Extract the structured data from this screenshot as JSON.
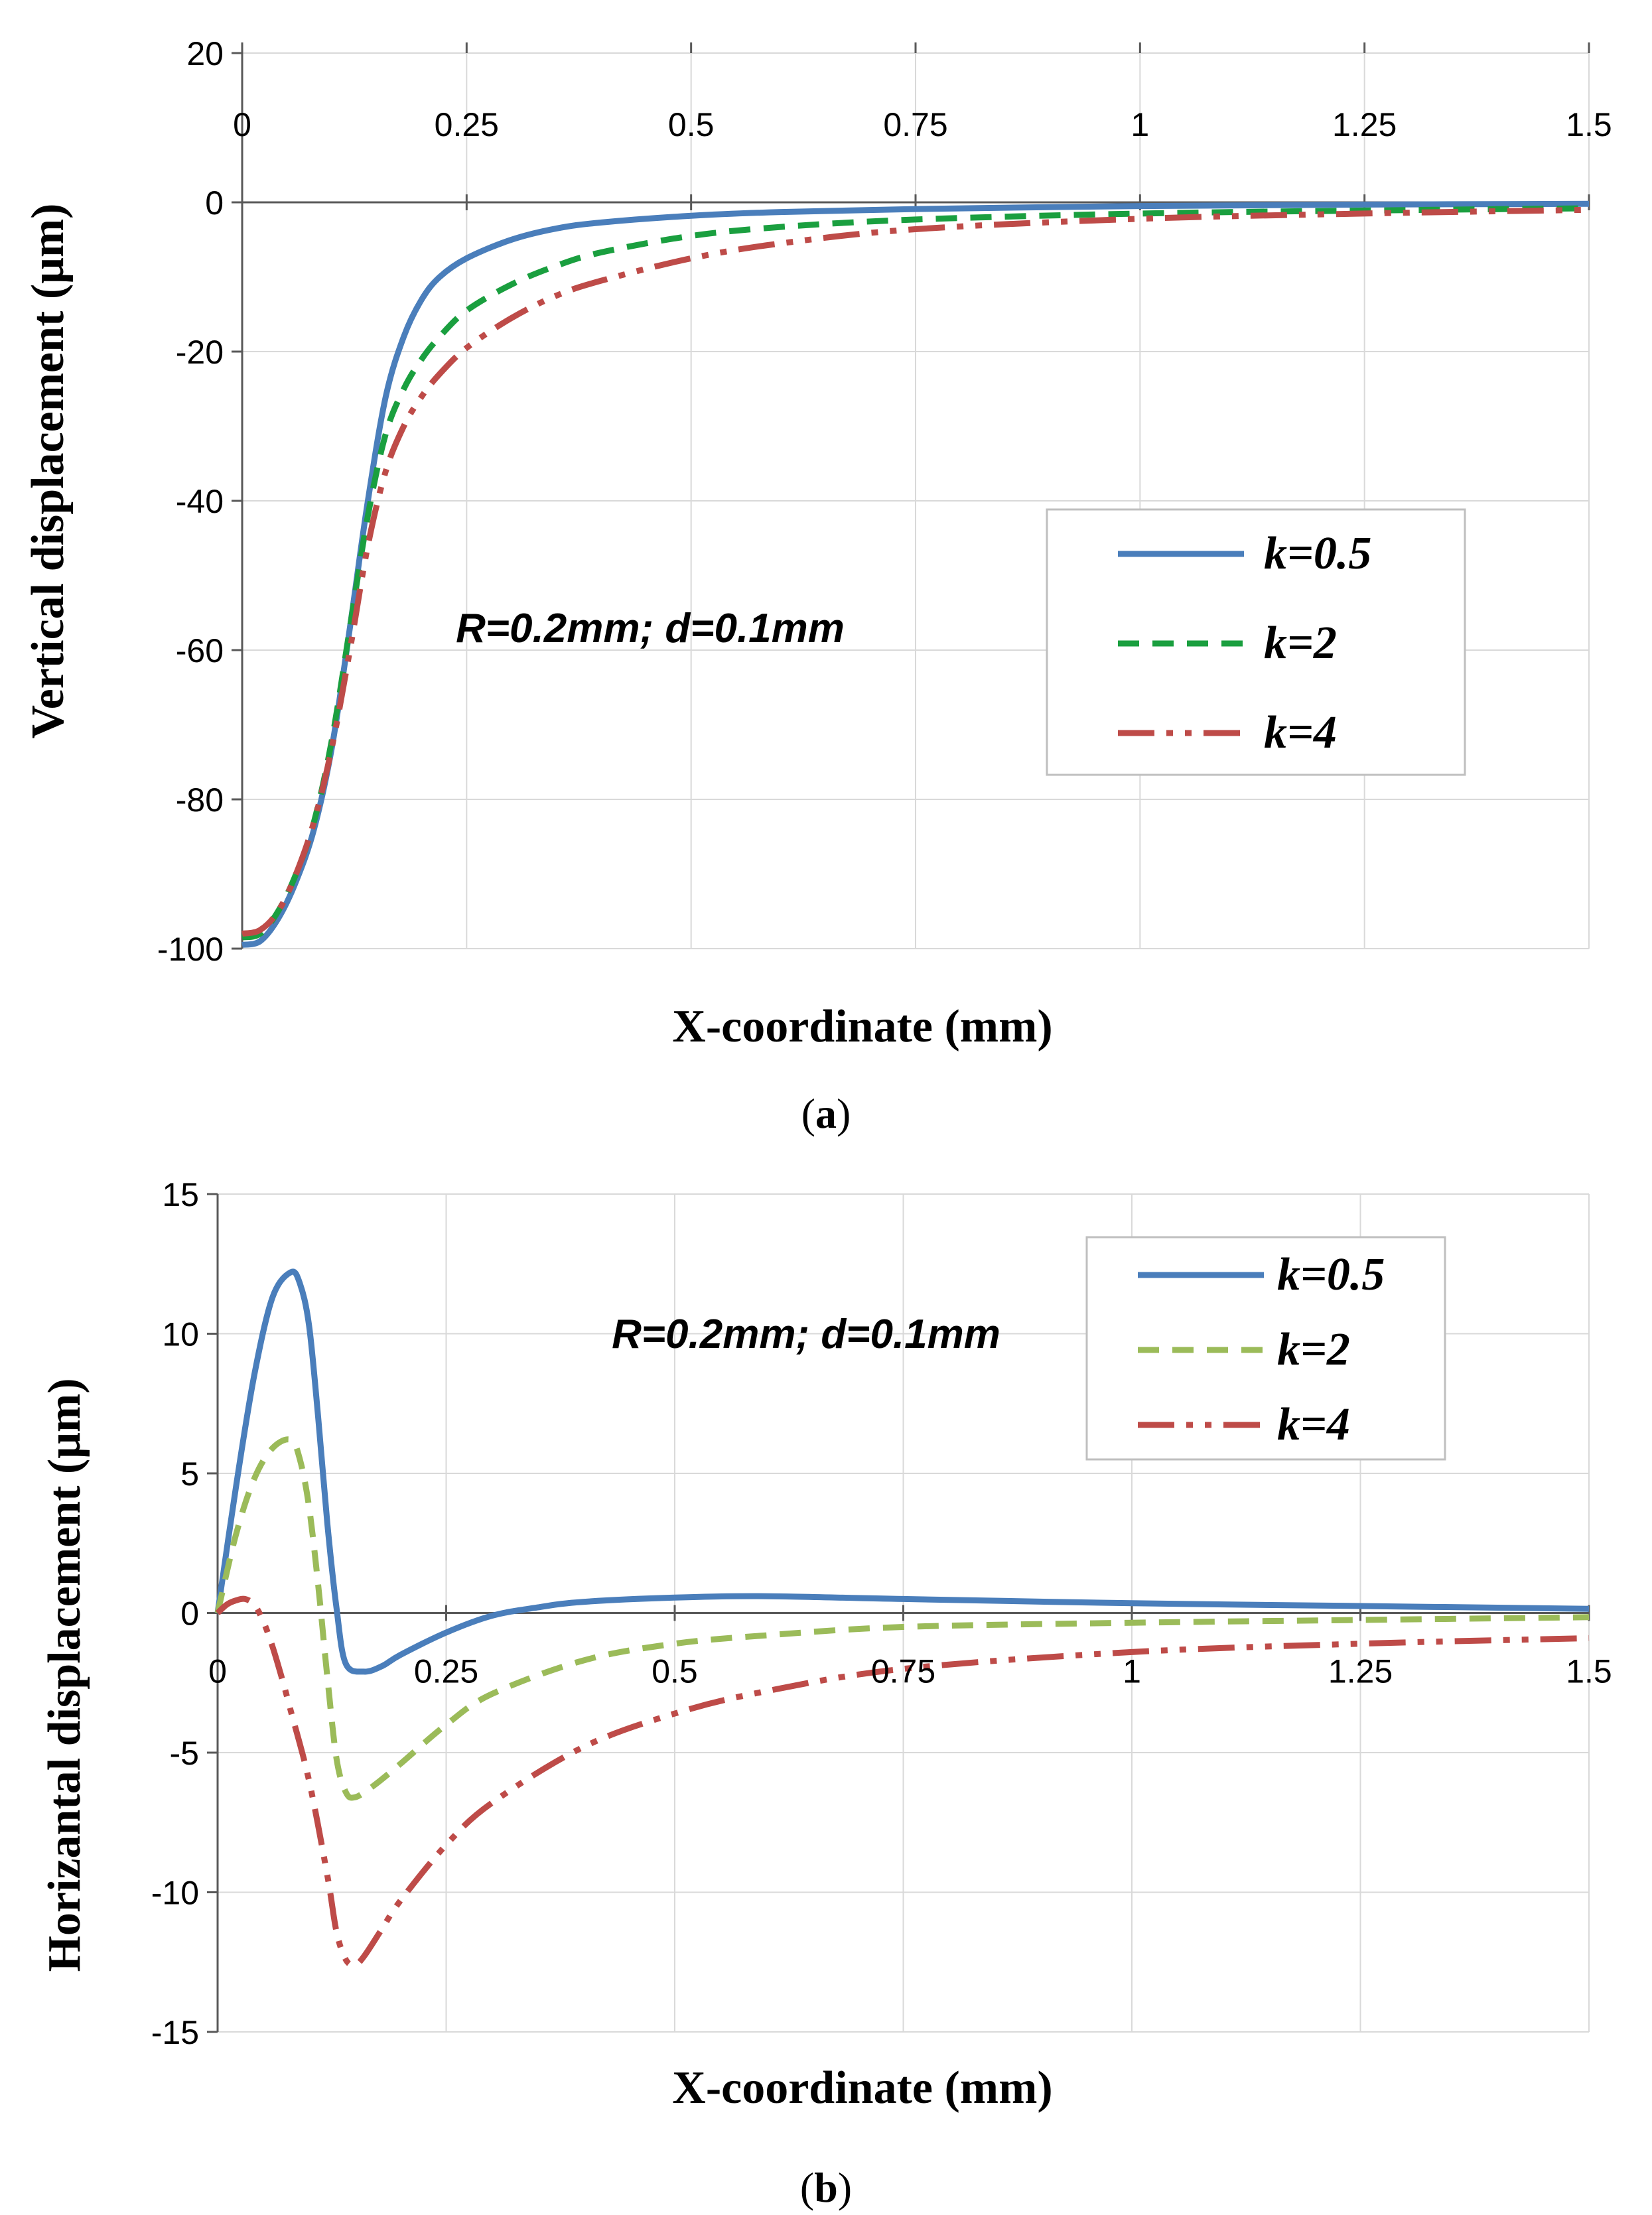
{
  "colors": {
    "k05": "#4a7ebb",
    "k2_a": "#1a9f3f",
    "k2_b": "#9bbb59",
    "k4": "#be4b48"
  },
  "chart_data": [
    {
      "id": "a",
      "type": "line",
      "panel_label_text": "a",
      "xlabel": "X-coordinate (mm)",
      "ylabel": "Vertical displacement (μm)",
      "annotation": "R=0.2mm; d=0.1mm",
      "xlim": [
        0,
        1.5
      ],
      "ylim": [
        -100,
        20
      ],
      "x_ticks": [
        0,
        0.25,
        0.5,
        0.75,
        1,
        1.25,
        1.5
      ],
      "x_tick_labels": [
        "0",
        "0.25",
        "0.5",
        "0.75",
        "1",
        "1.25",
        "1.5"
      ],
      "y_ticks": [
        20,
        0,
        -20,
        -40,
        -60,
        -80,
        -100
      ],
      "y_tick_labels": [
        "20",
        "0",
        "-20",
        "-40",
        "-60",
        "-80",
        "-100"
      ],
      "x_tick_labels_position": "top",
      "legend_position": "center-right",
      "series": [
        {
          "name": "k=0.5",
          "color_key": "k05",
          "dash": "solid",
          "x": [
            0,
            0.02,
            0.04,
            0.06,
            0.08,
            0.1,
            0.12,
            0.14,
            0.16,
            0.18,
            0.2,
            0.22,
            0.25,
            0.3,
            0.35,
            0.4,
            0.5,
            0.6,
            0.75,
            1.0,
            1.25,
            1.5
          ],
          "y": [
            -99.5,
            -99,
            -96,
            -91,
            -84,
            -73,
            -57,
            -40,
            -26,
            -18,
            -13,
            -10,
            -7.5,
            -5,
            -3.5,
            -2.7,
            -1.8,
            -1.3,
            -0.9,
            -0.5,
            -0.3,
            -0.2
          ]
        },
        {
          "name": "k=2",
          "color_key": "k2_a",
          "dash": "dashed",
          "x": [
            0,
            0.02,
            0.04,
            0.06,
            0.08,
            0.1,
            0.12,
            0.14,
            0.16,
            0.18,
            0.2,
            0.22,
            0.25,
            0.3,
            0.35,
            0.4,
            0.5,
            0.6,
            0.75,
            1.0,
            1.25,
            1.5
          ],
          "y": [
            -98.5,
            -98,
            -95,
            -90,
            -83,
            -72,
            -57,
            -42,
            -31,
            -25,
            -21,
            -18,
            -14.5,
            -11,
            -8.5,
            -6.7,
            -4.5,
            -3.3,
            -2.3,
            -1.5,
            -1.1,
            -0.8
          ]
        },
        {
          "name": "k=4",
          "color_key": "k4",
          "dash": "dashdotdot",
          "x": [
            0,
            0.02,
            0.04,
            0.06,
            0.08,
            0.1,
            0.12,
            0.14,
            0.16,
            0.18,
            0.2,
            0.22,
            0.25,
            0.3,
            0.35,
            0.4,
            0.5,
            0.6,
            0.75,
            1.0,
            1.25,
            1.5
          ],
          "y": [
            -98,
            -97.5,
            -95,
            -90,
            -83,
            -73,
            -60,
            -46,
            -36,
            -30,
            -26,
            -23,
            -19.5,
            -15.5,
            -12.5,
            -10.5,
            -7.5,
            -5.5,
            -3.6,
            -2.2,
            -1.5,
            -1.0
          ]
        }
      ]
    },
    {
      "id": "b",
      "type": "line",
      "panel_label_text": "b",
      "xlabel": "X-coordinate (mm)",
      "ylabel": "Horizantal displacement (μm)",
      "annotation": "R=0.2mm; d=0.1mm",
      "xlim": [
        0,
        1.5
      ],
      "ylim": [
        -15,
        15
      ],
      "x_ticks": [
        0,
        0.25,
        0.5,
        0.75,
        1,
        1.25,
        1.5
      ],
      "x_tick_labels": [
        "0",
        "0.25",
        "0.5",
        "0.75",
        "1",
        "1.25",
        "1.5"
      ],
      "y_ticks": [
        15,
        10,
        5,
        0,
        -5,
        -10,
        -15
      ],
      "y_tick_labels": [
        "15",
        "10",
        "5",
        "0",
        "-5",
        "-10",
        "-15"
      ],
      "x_tick_labels_position": "below zero line",
      "legend_position": "top-right",
      "series": [
        {
          "name": "k=0.5",
          "color_key": "k05",
          "dash": "solid",
          "x": [
            0,
            0.02,
            0.04,
            0.06,
            0.08,
            0.09,
            0.1,
            0.11,
            0.12,
            0.13,
            0.14,
            0.16,
            0.18,
            0.2,
            0.25,
            0.3,
            0.35,
            0.4,
            0.5,
            0.6,
            0.75,
            1.0,
            1.25,
            1.5
          ],
          "y": [
            0,
            4.5,
            8.5,
            11.3,
            12.2,
            11.8,
            10.3,
            7.0,
            3.2,
            0.2,
            -1.8,
            -2.1,
            -1.9,
            -1.5,
            -0.7,
            -0.1,
            0.2,
            0.4,
            0.55,
            0.6,
            0.5,
            0.35,
            0.25,
            0.15
          ]
        },
        {
          "name": "k=2",
          "color_key": "k2_b",
          "dash": "dashed",
          "x": [
            0,
            0.02,
            0.04,
            0.06,
            0.08,
            0.09,
            0.1,
            0.11,
            0.12,
            0.13,
            0.14,
            0.15,
            0.17,
            0.2,
            0.25,
            0.3,
            0.4,
            0.5,
            0.6,
            0.75,
            1.0,
            1.25,
            1.5
          ],
          "y": [
            0,
            2.8,
            4.8,
            5.9,
            6.2,
            5.5,
            3.8,
            1.0,
            -2.3,
            -5.2,
            -6.4,
            -6.6,
            -6.2,
            -5.4,
            -4.0,
            -2.9,
            -1.7,
            -1.1,
            -0.8,
            -0.5,
            -0.35,
            -0.25,
            -0.15
          ]
        },
        {
          "name": "k=4",
          "color_key": "k4",
          "dash": "dashdotdot",
          "x": [
            0,
            0.01,
            0.02,
            0.03,
            0.04,
            0.05,
            0.06,
            0.07,
            0.08,
            0.1,
            0.12,
            0.13,
            0.14,
            0.15,
            0.16,
            0.18,
            0.2,
            0.25,
            0.3,
            0.4,
            0.5,
            0.6,
            0.75,
            1.0,
            1.25,
            1.5
          ],
          "y": [
            0,
            0.3,
            0.45,
            0.5,
            0.3,
            -0.3,
            -1.2,
            -2.3,
            -3.5,
            -6.0,
            -9.4,
            -11.4,
            -12.4,
            -12.6,
            -12.3,
            -11.3,
            -10.3,
            -8.3,
            -6.8,
            -4.8,
            -3.6,
            -2.8,
            -2.0,
            -1.4,
            -1.1,
            -0.9
          ]
        }
      ]
    }
  ]
}
